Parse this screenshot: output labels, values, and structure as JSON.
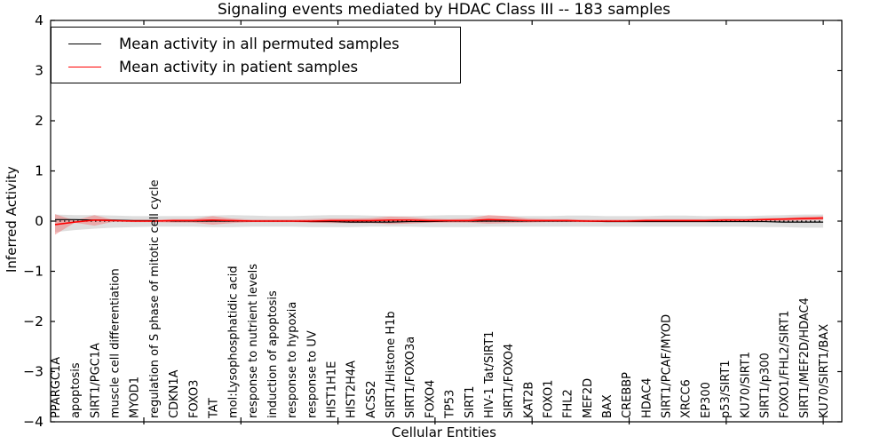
{
  "chart_data": {
    "type": "line",
    "title": "Signaling events mediated by HDAC Class III -- 183 samples",
    "xlabel": "Cellular Entities",
    "ylabel": "Inferred Activity",
    "ylim": [
      -4,
      4
    ],
    "ytick_labels": [
      "4",
      "3",
      "2",
      "1",
      "0",
      "−1",
      "−2",
      "−3",
      "−4"
    ],
    "legend_position": "upper left",
    "grid": false,
    "zero_line_style": "dotted",
    "categories": [
      "PPARGC1A",
      "apoptosis",
      "SIRT1/PGC1A",
      "muscle cell differentiation",
      "MYOD1",
      "regulation of S phase of mitotic cell cycle",
      "CDKN1A",
      "FOXO3",
      "TAT",
      "mol:Lysophosphatidic acid",
      "response to nutrient levels",
      "induction of apoptosis",
      "response to hypoxia",
      "response to UV",
      "HIST1H1E",
      "HIST2H4A",
      "ACSS2",
      "SIRT1/Histone H1b",
      "SIRT1/FOXO3a",
      "FOXO4",
      "TP53",
      "SIRT1",
      "HIV-1 Tat/SIRT1",
      "SIRT1/FOXO4",
      "KAT2B",
      "FOXO1",
      "FHL2",
      "MEF2D",
      "BAX",
      "CREBBP",
      "HDAC4",
      "SIRT1/PCAF/MYOD",
      "XRCC6",
      "EP300",
      "p53/SIRT1",
      "KU70/SIRT1",
      "SIRT1/p300",
      "FOXO1/FHL2/SIRT1",
      "SIRT1/MEF2D/HDAC4",
      "KU70/SIRT1/BAX"
    ],
    "series": [
      {
        "name": "Mean activity in all permuted samples",
        "color": "#000000",
        "band_color": "#cccccc",
        "mean": [
          0.03,
          0.03,
          0.02,
          0.02,
          0.01,
          0.01,
          0,
          0,
          0,
          0,
          0,
          0,
          0,
          -0.01,
          -0.01,
          -0.02,
          -0.02,
          -0.02,
          -0.01,
          -0.01,
          0,
          0,
          0,
          0,
          0,
          0,
          0,
          0,
          -0.01,
          -0.01,
          -0.01,
          -0.01,
          -0.01,
          -0.01,
          -0.01,
          -0.01,
          -0.01,
          -0.02,
          -0.02,
          -0.02
        ],
        "upper": [
          0.13,
          0.12,
          0.12,
          0.11,
          0.1,
          0.1,
          0.1,
          0.1,
          0.11,
          0.12,
          0.11,
          0.1,
          0.1,
          0.11,
          0.12,
          0.12,
          0.11,
          0.1,
          0.1,
          0.11,
          0.12,
          0.12,
          0.11,
          0.1,
          0.1,
          0.1,
          0.11,
          0.11,
          0.1,
          0.1,
          0.1,
          0.11,
          0.11,
          0.1,
          0.1,
          0.1,
          0.11,
          0.12,
          0.13,
          0.13
        ],
        "lower": [
          -0.22,
          -0.18,
          -0.15,
          -0.13,
          -0.12,
          -0.11,
          -0.11,
          -0.11,
          -0.12,
          -0.12,
          -0.11,
          -0.11,
          -0.11,
          -0.12,
          -0.12,
          -0.12,
          -0.11,
          -0.11,
          -0.11,
          -0.12,
          -0.12,
          -0.12,
          -0.11,
          -0.11,
          -0.11,
          -0.11,
          -0.11,
          -0.11,
          -0.11,
          -0.11,
          -0.11,
          -0.11,
          -0.11,
          -0.11,
          -0.11,
          -0.11,
          -0.12,
          -0.12,
          -0.13,
          -0.13
        ]
      },
      {
        "name": "Mean activity in patient samples",
        "color": "#ff0000",
        "band_color": "#f08080",
        "mean": [
          -0.07,
          -0.02,
          0.02,
          0.01,
          0,
          0,
          0.01,
          0.01,
          0.02,
          0.01,
          0,
          0,
          0,
          0,
          0.01,
          0.01,
          0.01,
          0.02,
          0.02,
          0.01,
          0.01,
          0.01,
          0.03,
          0.02,
          0.01,
          0.01,
          0.01,
          0,
          0,
          0,
          0.01,
          0.01,
          0.01,
          0.01,
          0.02,
          0.02,
          0.03,
          0.04,
          0.05,
          0.06
        ],
        "upper": [
          0.14,
          0.01,
          0.12,
          0.02,
          0.03,
          0.03,
          0.04,
          0.04,
          0.1,
          0.05,
          0.03,
          0.03,
          0.03,
          0.04,
          0.05,
          0.05,
          0.06,
          0.09,
          0.08,
          0.05,
          0.04,
          0.05,
          0.12,
          0.1,
          0.05,
          0.04,
          0.04,
          0.03,
          0.03,
          0.03,
          0.04,
          0.04,
          0.04,
          0.04,
          0.05,
          0.05,
          0.06,
          0.07,
          0.09,
          0.1
        ],
        "lower": [
          -0.27,
          -0.03,
          -0.09,
          -0.01,
          -0.02,
          -0.02,
          -0.03,
          -0.03,
          -0.07,
          -0.04,
          -0.02,
          -0.02,
          -0.02,
          -0.03,
          -0.04,
          -0.04,
          -0.04,
          -0.06,
          -0.05,
          -0.03,
          -0.03,
          -0.03,
          -0.05,
          -0.04,
          -0.03,
          -0.02,
          -0.02,
          -0.02,
          -0.02,
          -0.02,
          -0.02,
          -0.02,
          -0.02,
          -0.02,
          -0.01,
          -0.01,
          0,
          0,
          0.01,
          0.02
        ]
      }
    ]
  }
}
